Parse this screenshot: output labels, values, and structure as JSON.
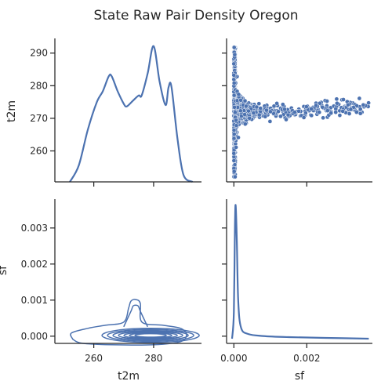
{
  "chart_data": {
    "type": "pairgrid",
    "title": "State Raw Pair Density Oregon",
    "variables": [
      "t2m",
      "sf"
    ],
    "t2m_ticks": [
      260,
      270,
      280,
      290
    ],
    "t2m_ticks_x": [
      260,
      280
    ],
    "sf_ticks": [
      "0.000",
      "0.001",
      "0.002",
      "0.003"
    ],
    "sf_ticks_x": [
      "0.000",
      "0.002"
    ],
    "sf_tick_values": [
      0,
      0.001,
      0.002,
      0.003
    ],
    "sf_tick_values_x": [
      0,
      0.002
    ],
    "t2m_range": [
      250.5,
      294.5
    ],
    "t2m_xrange": [
      247,
      296
    ],
    "sf_range": [
      -0.0002,
      0.0038
    ],
    "t2m_kde": {
      "type": "line",
      "x": [
        252,
        255,
        258,
        261,
        263,
        265,
        266,
        268,
        270,
        271,
        273,
        275,
        276,
        278,
        280,
        282,
        284,
        285,
        286,
        288,
        290,
        293
      ],
      "density_rel": [
        0.0,
        0.12,
        0.38,
        0.58,
        0.66,
        0.77,
        0.77,
        0.66,
        0.57,
        0.55,
        0.59,
        0.63,
        0.63,
        0.79,
        0.99,
        0.73,
        0.56,
        0.69,
        0.69,
        0.31,
        0.05,
        0.0
      ]
    },
    "sf_kde": {
      "type": "line",
      "x": [
        -5e-05,
        0.0,
        3e-05,
        5e-05,
        8e-05,
        0.00012,
        0.0002,
        0.0004,
        0.0008,
        0.0015,
        0.0025,
        0.0037
      ],
      "density_rel": [
        0.0,
        0.2,
        0.85,
        1.0,
        0.75,
        0.28,
        0.08,
        0.035,
        0.02,
        0.012,
        0.006,
        0.0
      ]
    },
    "scatter": {
      "type": "scatter",
      "x_variable": "sf",
      "y_variable": "t2m",
      "trend_y": 272,
      "trend_y_spread": 1.6,
      "x_range": [
        0,
        0.0037
      ],
      "y_near_zero_range": [
        252,
        292
      ]
    },
    "contour": {
      "type": "kde2d",
      "x_variable": "t2m",
      "y_variable": "sf",
      "peak_t2m": 274,
      "peak_sf": 0.00095,
      "main_band_sf": 0.0
    }
  }
}
